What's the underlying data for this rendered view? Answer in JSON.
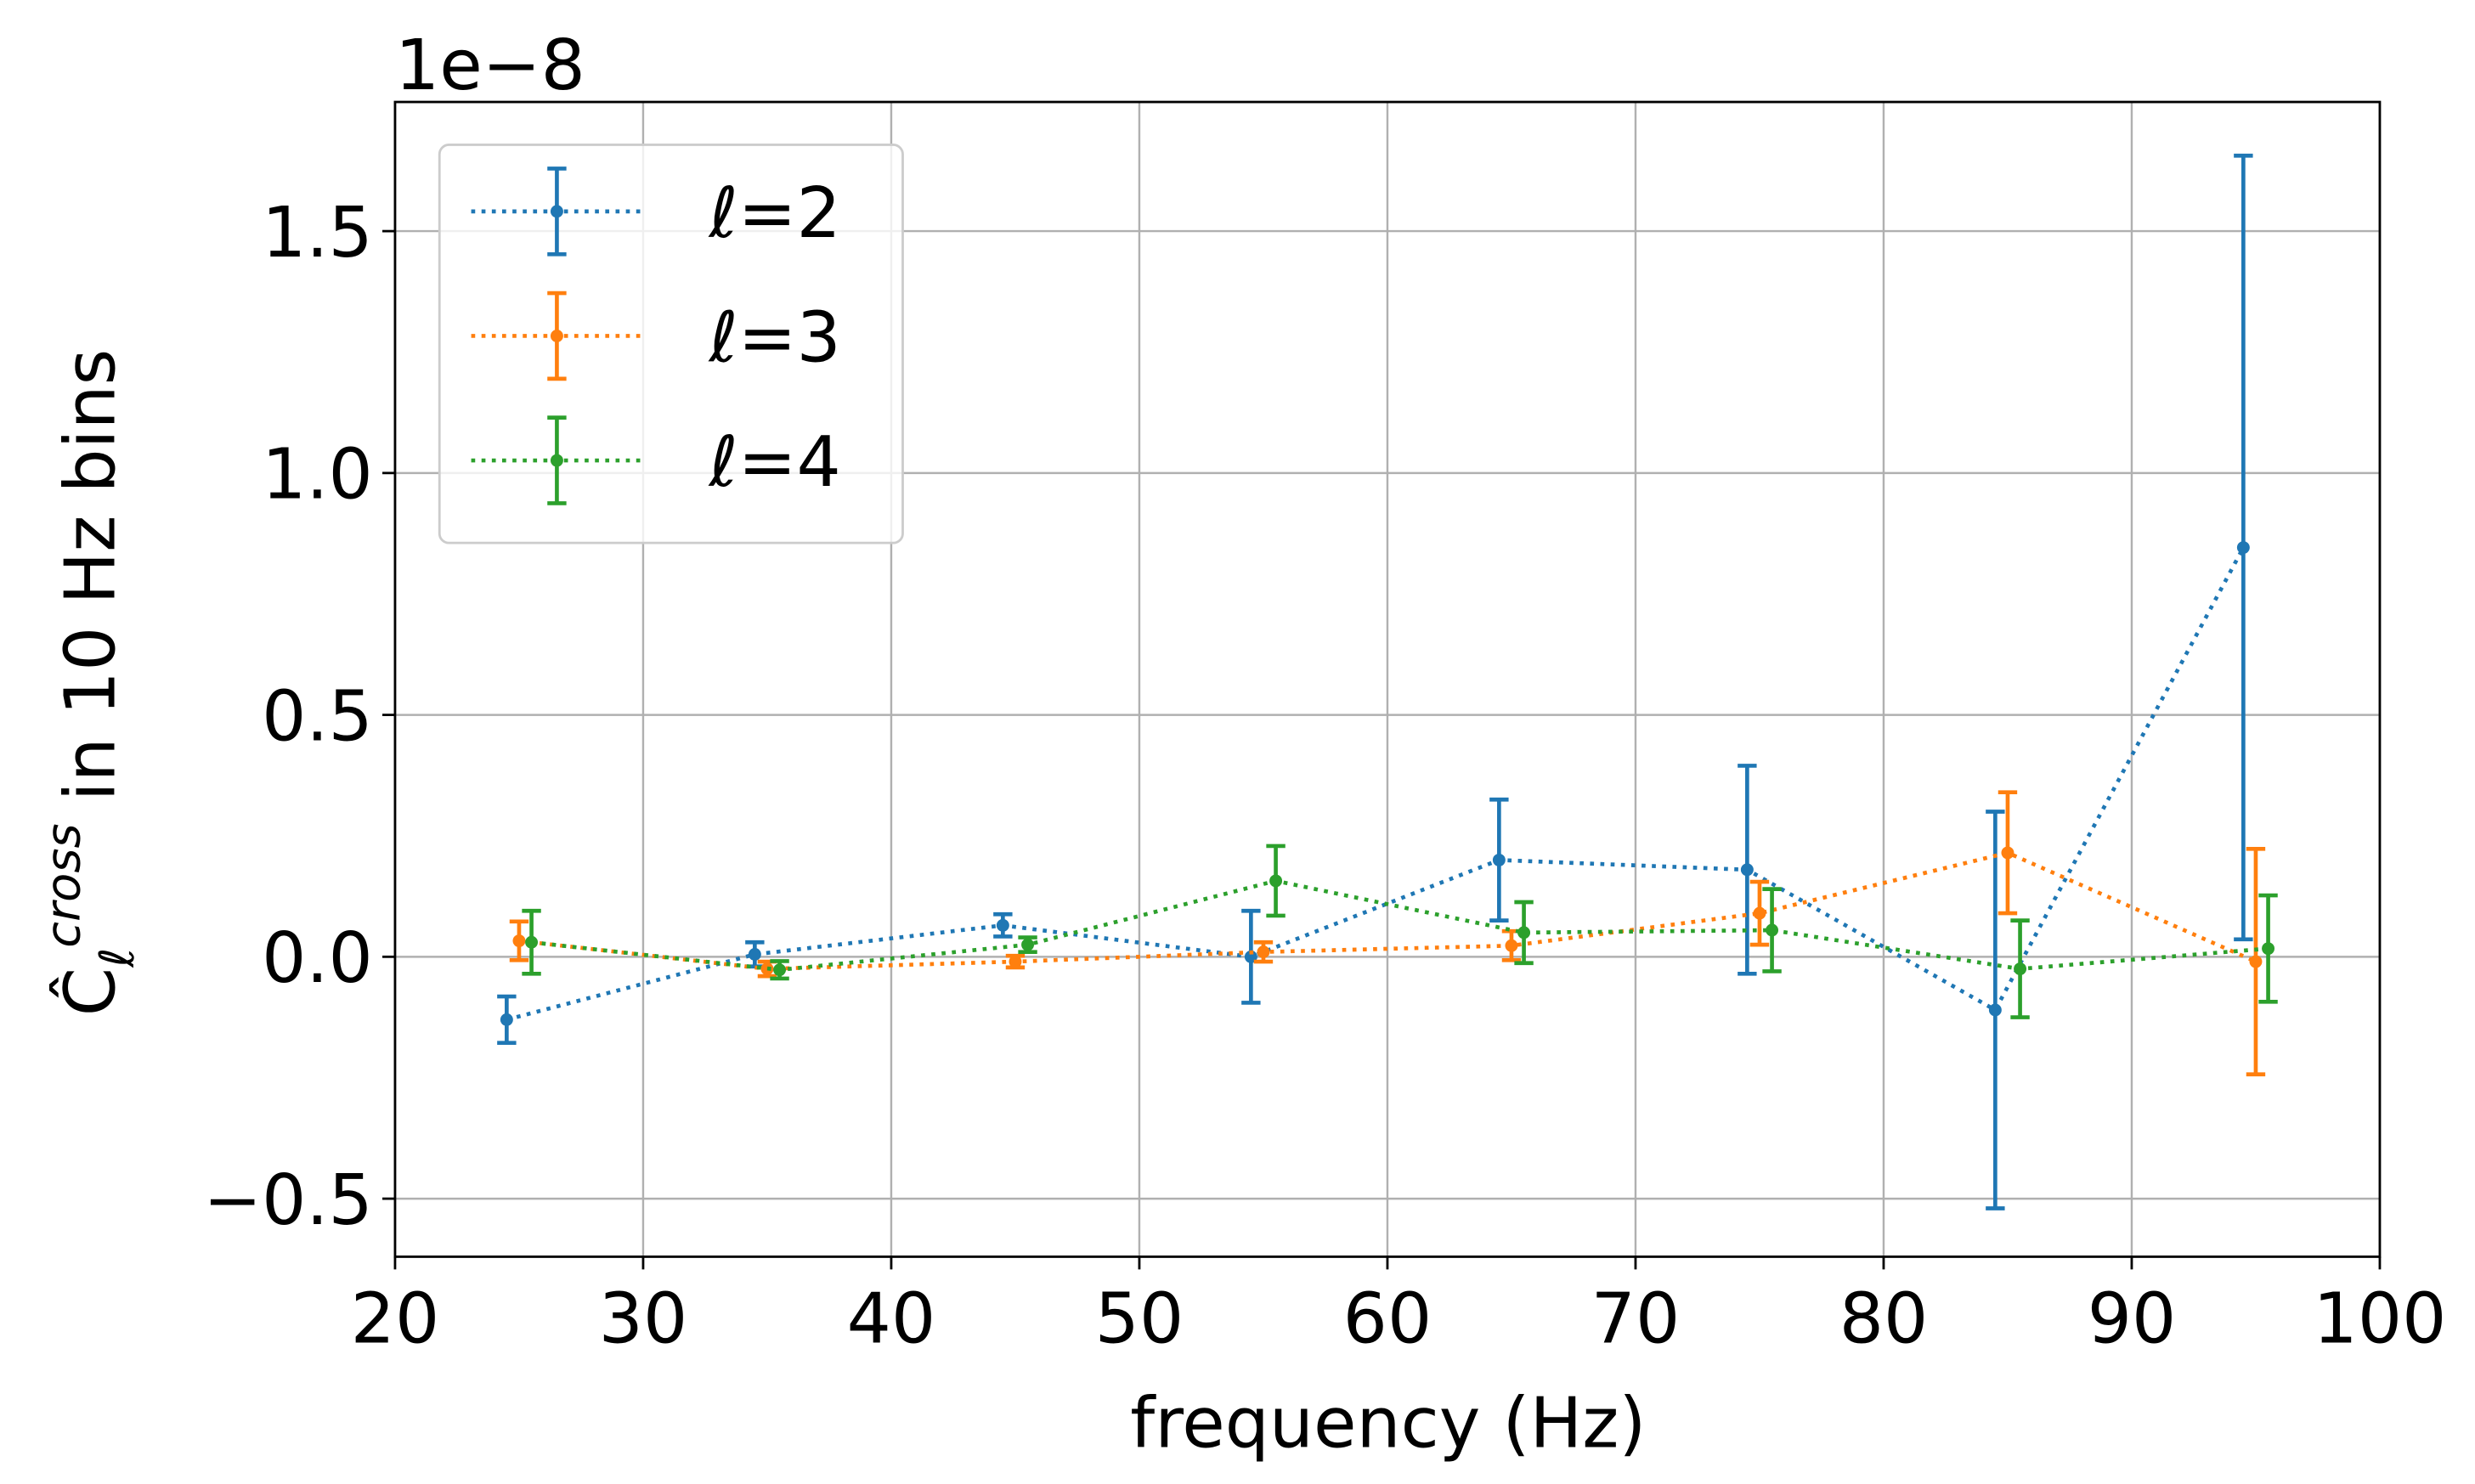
{
  "chart_data": {
    "type": "errorbar",
    "offset_text": "1e−8",
    "xlabel": "frequency (Hz)",
    "ylabel": {
      "symbol": "Ĉ",
      "subscript": "ℓ",
      "superscript": "cross",
      "text": " in 10 Hz bins"
    },
    "xlim": [
      20,
      100
    ],
    "xticks": [
      20,
      30,
      40,
      50,
      60,
      70,
      80,
      90,
      100
    ],
    "ylim": [
      -0.62,
      1.767
    ],
    "yticks": [
      {
        "value": -0.5,
        "label": "−0.5"
      },
      {
        "value": 0,
        "label": "0.0"
      },
      0.5,
      {
        "value": 1,
        "label": "1.0"
      },
      1.5
    ],
    "grid": true,
    "legend": "upper left",
    "series": [
      {
        "name": "ℓ=2",
        "color": "#1f77b4",
        "x": [
          24.5,
          34.5,
          44.5,
          54.5,
          64.5,
          74.5,
          84.5,
          94.5
        ],
        "values": [
          -0.13,
          0.005,
          0.065,
          0.0,
          0.2,
          0.18,
          -0.11,
          0.846
        ],
        "errors": [
          0.048,
          0.025,
          0.023,
          0.095,
          0.125,
          0.215,
          0.41,
          0.81
        ]
      },
      {
        "name": "ℓ=3",
        "color": "#ff7f0e",
        "x": [
          25,
          35,
          45,
          55,
          65,
          75,
          85,
          95
        ],
        "values": [
          0.033,
          -0.025,
          -0.01,
          0.01,
          0.023,
          0.09,
          0.215,
          -0.01
        ],
        "errors": [
          0.04,
          0.015,
          0.012,
          0.02,
          0.03,
          0.065,
          0.125,
          0.233
        ]
      },
      {
        "name": "ℓ=4",
        "color": "#2ca02c",
        "x": [
          25.5,
          35.5,
          45.5,
          55.5,
          65.5,
          75.5,
          85.5,
          95.5
        ],
        "values": [
          0.03,
          -0.027,
          0.025,
          0.157,
          0.05,
          0.055,
          -0.025,
          0.017
        ],
        "errors": [
          0.065,
          0.018,
          0.015,
          0.072,
          0.063,
          0.085,
          0.1,
          0.11
        ]
      }
    ]
  }
}
